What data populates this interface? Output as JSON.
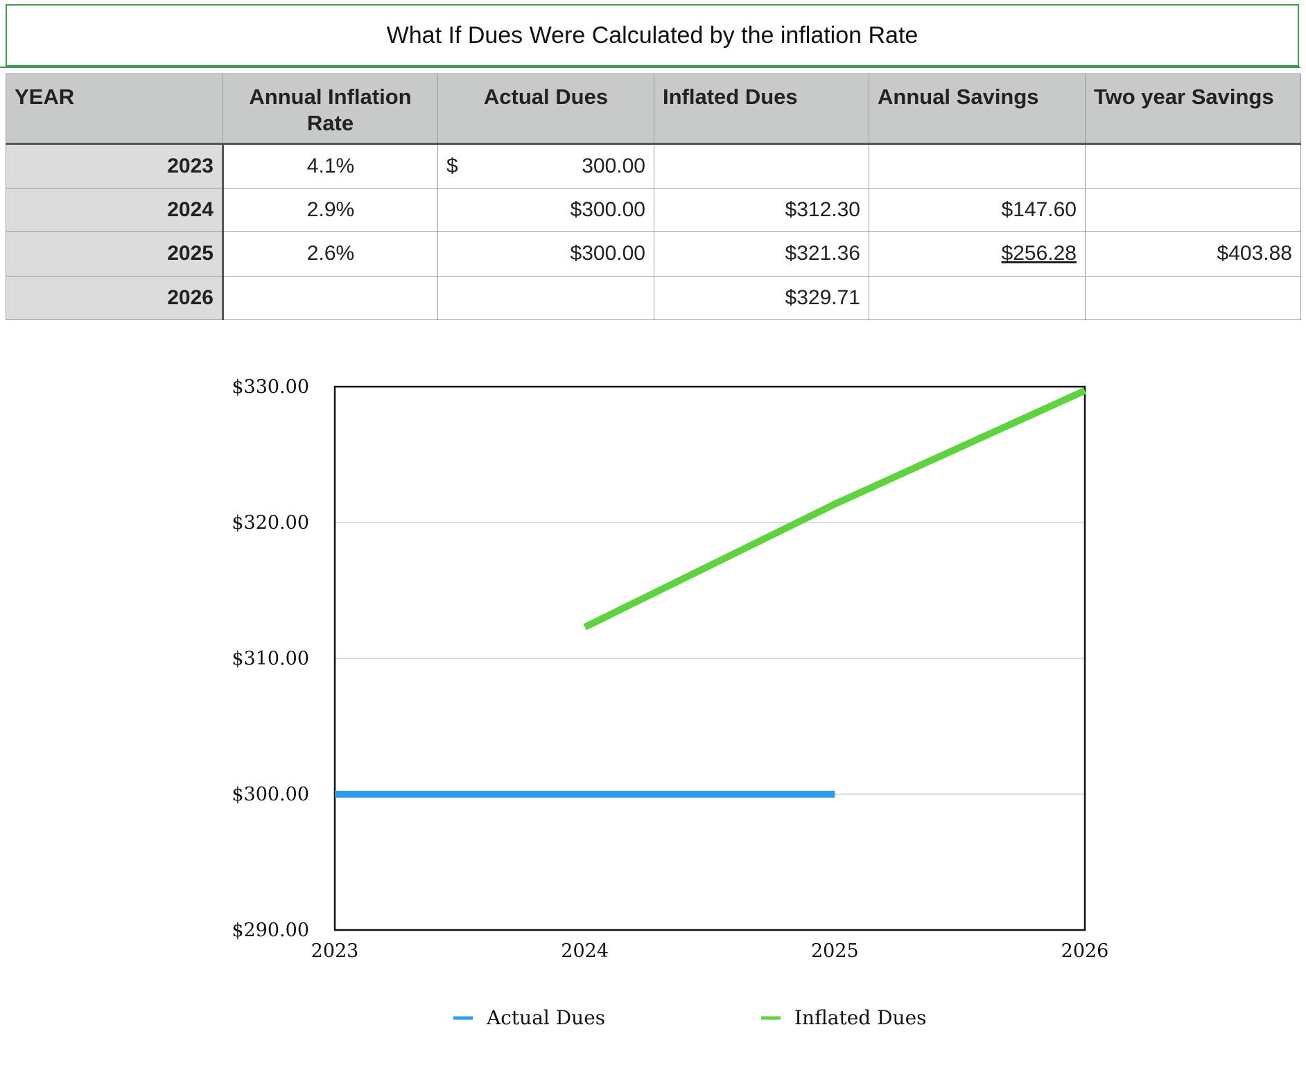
{
  "sheet": {
    "title": "What If Dues Were Calculated by the inflation Rate",
    "headers": [
      "YEAR",
      "Annual Inflation Rate",
      "Actual Dues",
      "Inflated Dues",
      "Annual Savings",
      "Two year Savings"
    ],
    "rows": [
      {
        "year": "2023",
        "rate": "4.1%",
        "actual_symbol": "$",
        "actual": "300.00",
        "inflated": "",
        "annual_savings": "",
        "two_year": ""
      },
      {
        "year": "2024",
        "rate": "2.9%",
        "actual_symbol": "",
        "actual": "$300.00",
        "inflated": "$312.30",
        "annual_savings": "$147.60",
        "two_year": ""
      },
      {
        "year": "2025",
        "rate": "2.6%",
        "actual_symbol": "",
        "actual": "$300.00",
        "inflated": "$321.36",
        "annual_savings": "$256.28",
        "two_year": "$403.88"
      },
      {
        "year": "2026",
        "rate": "",
        "actual_symbol": "",
        "actual": "",
        "inflated": "$329.71",
        "annual_savings": "",
        "two_year": ""
      }
    ]
  },
  "chart_data": {
    "type": "line",
    "x": [
      2023,
      2024,
      2025,
      2026
    ],
    "x_tick_labels": [
      "2023",
      "2024",
      "2025",
      "2026"
    ],
    "y_tick_labels": [
      "$330.00",
      "$320.00",
      "$310.00",
      "$300.00",
      "$290.00"
    ],
    "y_ticks": [
      330,
      320,
      310,
      300,
      290
    ],
    "ylim": [
      290,
      330
    ],
    "grid": true,
    "legend_position": "bottom",
    "series": [
      {
        "name": "Actual Dues",
        "color": "#2e9cea",
        "points": [
          [
            2023,
            300
          ],
          [
            2024,
            300
          ],
          [
            2025,
            300
          ]
        ]
      },
      {
        "name": "Inflated Dues",
        "color": "#5fd33f",
        "points": [
          [
            2024,
            312.3
          ],
          [
            2025,
            321.36
          ],
          [
            2026,
            329.71
          ]
        ]
      }
    ]
  }
}
